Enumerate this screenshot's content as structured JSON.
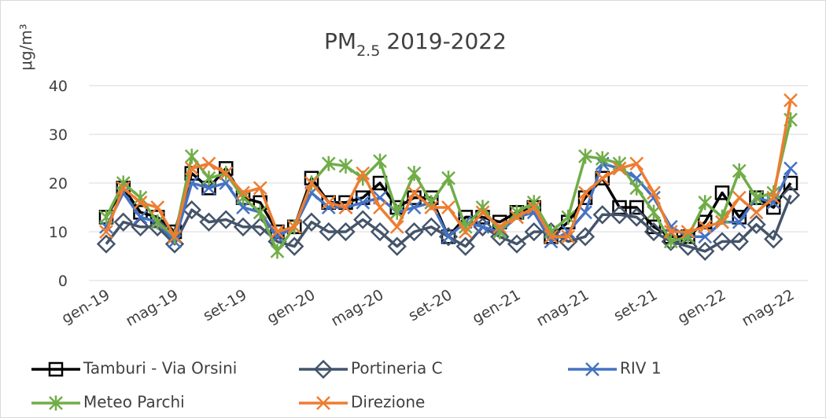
{
  "chart_data": {
    "type": "line",
    "title": [
      "PM",
      "2.5",
      "2019-2022"
    ],
    "y_label": "μg/m³",
    "categories": [
      "gen-19",
      null,
      null,
      null,
      "mag-19",
      null,
      null,
      null,
      "set-19",
      null,
      null,
      null,
      "gen-20",
      null,
      null,
      null,
      "mag-20",
      null,
      null,
      null,
      "set-20",
      null,
      null,
      null,
      "gen-21",
      null,
      null,
      null,
      "mag-21",
      null,
      null,
      null,
      "set-21",
      null,
      null,
      null,
      "gen-22",
      null,
      null,
      null,
      "mag-22"
    ],
    "ylim": [
      0,
      40
    ],
    "yticks": [
      0,
      10,
      20,
      30,
      40
    ],
    "grid": true,
    "series": [
      {
        "name": "Tamburi - Via Orsini",
        "color": "#000000",
        "marker": "square",
        "values": [
          13,
          19,
          14,
          13,
          10,
          22,
          19,
          23,
          17,
          16,
          10,
          11,
          21,
          16,
          16,
          17,
          20,
          15,
          17,
          17,
          9,
          13,
          13,
          12,
          14,
          15,
          9,
          12,
          17,
          21,
          15,
          15,
          11,
          9,
          9,
          12,
          18,
          13,
          17,
          15,
          20
        ]
      },
      {
        "name": "Portineria C",
        "color": "#44546a",
        "marker": "diamond",
        "values": [
          7.5,
          12,
          11,
          11,
          7.5,
          14.5,
          12,
          12.5,
          11,
          11,
          8,
          7,
          12,
          10,
          10,
          12.5,
          10,
          7,
          10,
          11,
          9,
          7,
          11,
          9,
          7.5,
          10,
          10,
          8,
          9,
          13.5,
          13.5,
          13,
          10,
          8,
          7,
          6,
          8,
          8,
          11.5,
          8.5,
          17.5
        ]
      },
      {
        "name": "RIV 1",
        "color": "#4472c4",
        "marker": "x",
        "values": [
          11,
          18,
          13,
          12,
          8,
          20,
          19,
          20,
          15,
          14,
          9,
          11,
          18,
          15,
          15,
          16,
          17,
          14,
          15,
          16,
          9,
          12,
          11,
          10,
          13,
          14,
          8,
          10,
          14,
          24,
          23,
          21,
          17,
          11,
          9,
          9,
          12,
          12,
          17,
          16,
          23
        ]
      },
      {
        "name": "Meteo Parchi",
        "color": "#70ad47",
        "marker": "star",
        "values": [
          13,
          20,
          17,
          12,
          9,
          25.5,
          21,
          22,
          17,
          14,
          6,
          11,
          20,
          24,
          23.5,
          21,
          24.5,
          14,
          22,
          16,
          21,
          11,
          15,
          10,
          14,
          16,
          10,
          13,
          25.5,
          25,
          24,
          19,
          14,
          8,
          9,
          16,
          13,
          22.5,
          17,
          18,
          33
        ]
      },
      {
        "name": "Direzione",
        "color": "#ed7d31",
        "marker": "x",
        "values": [
          10,
          19,
          16,
          15,
          9,
          23,
          24,
          22,
          18,
          19,
          10,
          11,
          20,
          16,
          15,
          22,
          15,
          11,
          18,
          15,
          15,
          10,
          14,
          11,
          13,
          15,
          9,
          9,
          18,
          21,
          23,
          24,
          18,
          10,
          10,
          11,
          12,
          17,
          14,
          17,
          37
        ]
      }
    ]
  }
}
